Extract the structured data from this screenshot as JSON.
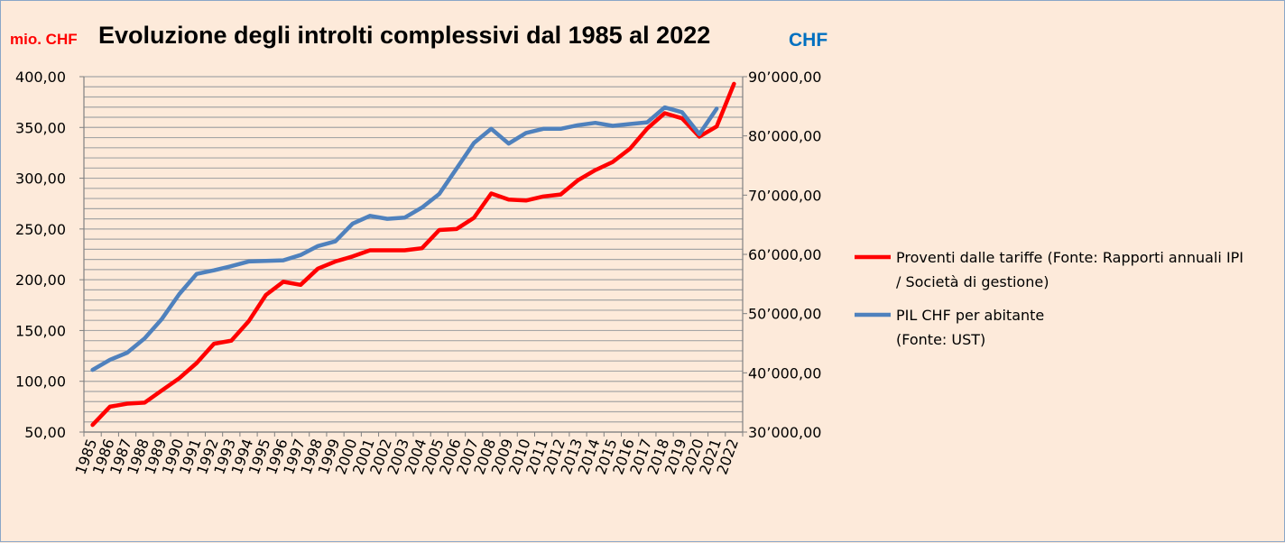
{
  "chart_data": {
    "type": "line",
    "title": "Evoluzione degli introlti complessivi dal 1985 al 2022",
    "y_left_label": "mio. CHF",
    "y_right_label": "CHF",
    "x": [
      "1985",
      "1986",
      "1987",
      "1988",
      "1989",
      "1990",
      "1991",
      "1992",
      "1993",
      "1994",
      "1995",
      "1996",
      "1997",
      "1998",
      "1999",
      "2000",
      "2001",
      "2002",
      "2003",
      "2004",
      "2005",
      "2006",
      "2007",
      "2008",
      "2009",
      "2010",
      "2011",
      "2012",
      "2013",
      "2014",
      "2015",
      "2016",
      "2017",
      "2018",
      "2019",
      "2020",
      "2021",
      "2022"
    ],
    "y_left_range": [
      50,
      400
    ],
    "y_left_ticks": [
      "400,00",
      "350,00",
      "300,00",
      "250,00",
      "200,00",
      "150,00",
      "100,00",
      "50,00"
    ],
    "y_right_range": [
      30000,
      90000
    ],
    "y_right_ticks": [
      "90’000,00",
      "80’000,00",
      "70’000,00",
      "60’000,00",
      "50’000,00",
      "40’000,00",
      "30’000,00"
    ],
    "grid": true,
    "legend_position": "right",
    "series": [
      {
        "name": "Proventi dalle tariffe (Fonte: Rapporti annuali IPI / Società di gestione)",
        "name_lines": [
          "Proventi dalle tariffe (Fonte: Rapporti annuali IPI",
          "/ Società di gestione)"
        ],
        "axis": "left",
        "color": "#ff0000",
        "values": [
          57,
          75,
          78,
          79,
          91,
          103,
          118,
          137,
          140,
          159,
          185,
          198,
          195,
          211,
          218,
          223,
          229,
          229,
          229,
          231,
          249,
          250,
          261,
          285,
          279,
          278,
          282,
          284,
          298,
          308,
          316,
          329,
          349,
          364,
          359,
          341,
          351,
          393
        ]
      },
      {
        "name": "PIL CHF per abitante (Fonte: UST)",
        "name_lines": [
          "PIL CHF per abitante",
          "(Fonte: UST)"
        ],
        "axis": "right",
        "color": "#4f81bd",
        "values": [
          40500,
          42200,
          43400,
          45800,
          49100,
          53300,
          56700,
          57300,
          58000,
          58800,
          58900,
          59000,
          59900,
          61400,
          62200,
          65200,
          66500,
          66000,
          66200,
          67900,
          70200,
          74500,
          78800,
          81200,
          78700,
          80500,
          81200,
          81200,
          81800,
          82200,
          81700,
          82000,
          82300,
          84800,
          84000,
          80300,
          84600,
          null
        ]
      }
    ]
  }
}
